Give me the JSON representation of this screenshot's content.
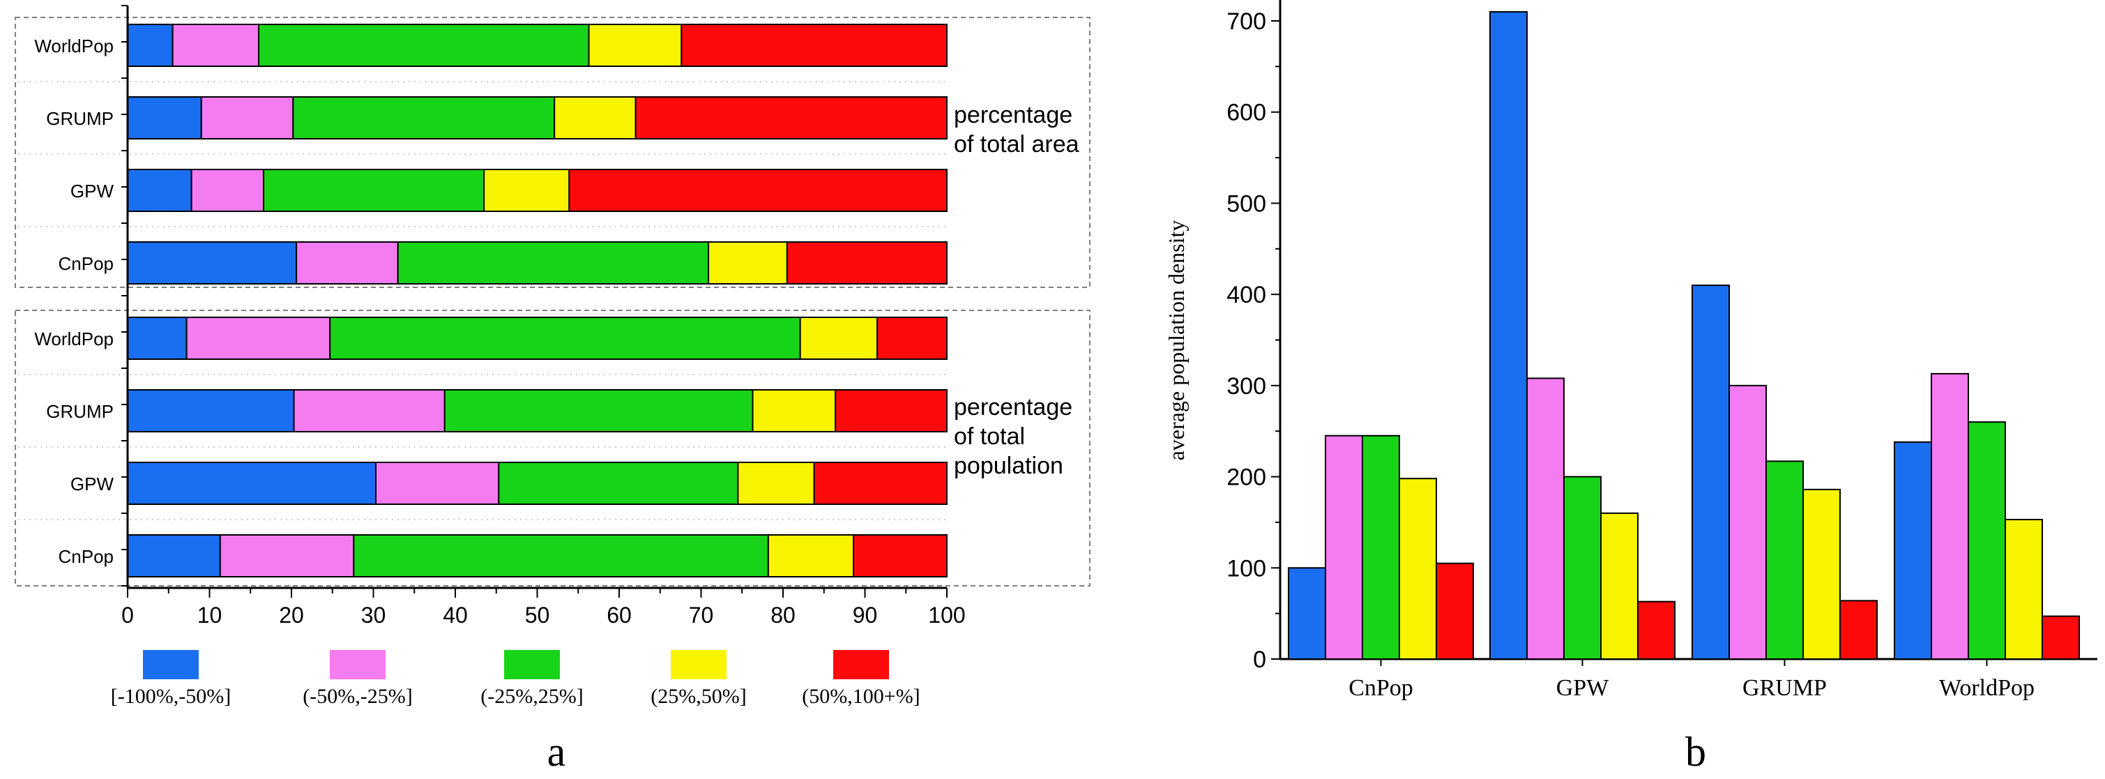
{
  "colors": {
    "c0": "#1a6ff0",
    "c1": "#f47bf0",
    "c2": "#18d418",
    "c3": "#f8f400",
    "c4": "#ff0a0a",
    "axis": "#000000",
    "frame": "#7f7f7f"
  },
  "legend": {
    "entries": [
      "[-100%,-50%]",
      "(-50%,-25%]",
      "(-25%,25%]",
      "(25%,50%]",
      "(50%,100+%]"
    ]
  },
  "chart_data": [
    {
      "type": "bar",
      "orientation": "horizontal",
      "stacked": true,
      "panel_label": "a",
      "xlim": [
        0,
        100
      ],
      "xticks": [
        "0",
        "10",
        "20",
        "30",
        "40",
        "50",
        "60",
        "70",
        "80",
        "90",
        "100"
      ],
      "series_names": [
        "[-100%,-50%]",
        "(-50%,-25%]",
        "(-25%,25%]",
        "(25%,50%]",
        "(50%,100+%]"
      ],
      "groups": [
        {
          "label": "percentage of total area",
          "label_lines": [
            "percentage",
            "of total area"
          ],
          "rows": [
            {
              "name": "WorldPop",
              "values": [
                5.5,
                10.5,
                40.3,
                11.3,
                32.4
              ]
            },
            {
              "name": "GRUMP",
              "values": [
                9.0,
                11.2,
                31.9,
                9.9,
                38.0
              ]
            },
            {
              "name": "GPW",
              "values": [
                7.8,
                8.8,
                26.9,
                10.4,
                46.1
              ]
            },
            {
              "name": "CnPop",
              "values": [
                20.6,
                12.4,
                37.9,
                9.6,
                19.5
              ]
            }
          ]
        },
        {
          "label": "percentage of total population",
          "label_lines": [
            "percentage",
            "of total",
            "population"
          ],
          "rows": [
            {
              "name": "WorldPop",
              "values": [
                7.2,
                17.5,
                57.4,
                9.4,
                8.5
              ]
            },
            {
              "name": "GRUMP",
              "values": [
                20.3,
                18.4,
                37.6,
                10.1,
                13.6
              ]
            },
            {
              "name": "GPW",
              "values": [
                30.3,
                15.0,
                29.2,
                9.3,
                16.2
              ]
            },
            {
              "name": "CnPop",
              "values": [
                11.3,
                16.3,
                50.6,
                10.4,
                11.4
              ]
            }
          ]
        }
      ]
    },
    {
      "type": "bar",
      "orientation": "vertical",
      "panel_label": "b",
      "ylabel": "average  population  density",
      "ylim": [
        0,
        720
      ],
      "yticks": [
        "0",
        "100",
        "200",
        "300",
        "400",
        "500",
        "600",
        "700"
      ],
      "categories": [
        "CnPop",
        "GPW",
        "GRUMP",
        "WorldPop"
      ],
      "series": [
        {
          "name": "[-100%,-50%]",
          "values": [
            100,
            710,
            410,
            238
          ]
        },
        {
          "name": "(-50%,-25%]",
          "values": [
            245,
            308,
            300,
            313
          ]
        },
        {
          "name": "(-25%,25%]",
          "values": [
            245,
            200,
            217,
            260
          ]
        },
        {
          "name": "(25%,50%]",
          "values": [
            198,
            160,
            186,
            153
          ]
        },
        {
          "name": "(50%,100+%]",
          "values": [
            105,
            63,
            64,
            47
          ]
        }
      ]
    }
  ]
}
